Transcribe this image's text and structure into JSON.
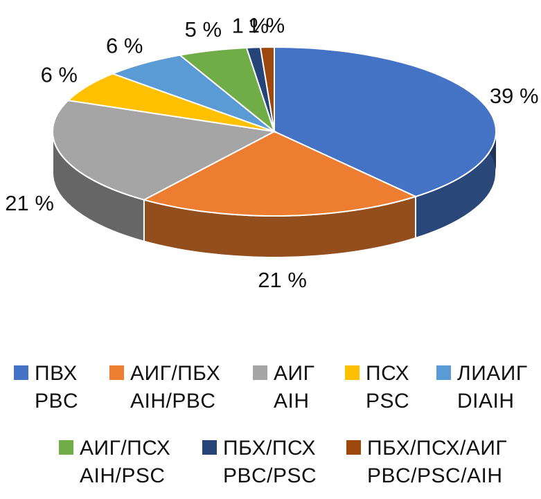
{
  "chart_data": {
    "type": "pie",
    "three_d": true,
    "labels": [
      "ПВХ\nPBC",
      "АИГ/ПБХ\nAIH/PBC",
      "АИГ\nAIH",
      "ПСХ\nPSC",
      "ЛИАИГ\nDIAIH",
      "АИГ/ПСХ\nAIH/PSC",
      "ПБХ/ПСХ\nPBC/PSC",
      "ПБХ/ПСХ/АИГ\nPBC/PSC/AIH"
    ],
    "values": [
      39,
      21,
      21,
      6,
      6,
      5,
      1,
      1
    ],
    "data_labels": [
      "39 %",
      "21 %",
      "21 %",
      "6 %",
      "6 %",
      "5 %",
      "1 %",
      "1 %"
    ],
    "colors": [
      "#4472C4",
      "#ED7D31",
      "#A5A5A5",
      "#FFC000",
      "#5B9BD5",
      "#70AD47",
      "#264478",
      "#9E480E"
    ],
    "legend_position": "bottom"
  },
  "legend": {
    "items": [
      {
        "line1": "ПВХ",
        "line2": "PBC",
        "color": "#4472C4"
      },
      {
        "line1": "АИГ/ПБХ",
        "line2": "AIH/PBC",
        "color": "#ED7D31"
      },
      {
        "line1": "АИГ",
        "line2": "AIH",
        "color": "#A5A5A5"
      },
      {
        "line1": "ПСХ",
        "line2": "PSC",
        "color": "#FFC000"
      },
      {
        "line1": "ЛИАИГ",
        "line2": "DIAIH",
        "color": "#5B9BD5"
      },
      {
        "line1": "АИГ/ПСХ",
        "line2": "AIH/PSC",
        "color": "#70AD47"
      },
      {
        "line1": "ПБХ/ПСХ",
        "line2": "PBC/PSC",
        "color": "#264478"
      },
      {
        "line1": "ПБХ/ПСХ/АИГ",
        "line2": "PBC/PSC/AIH",
        "color": "#9E480E"
      }
    ]
  }
}
